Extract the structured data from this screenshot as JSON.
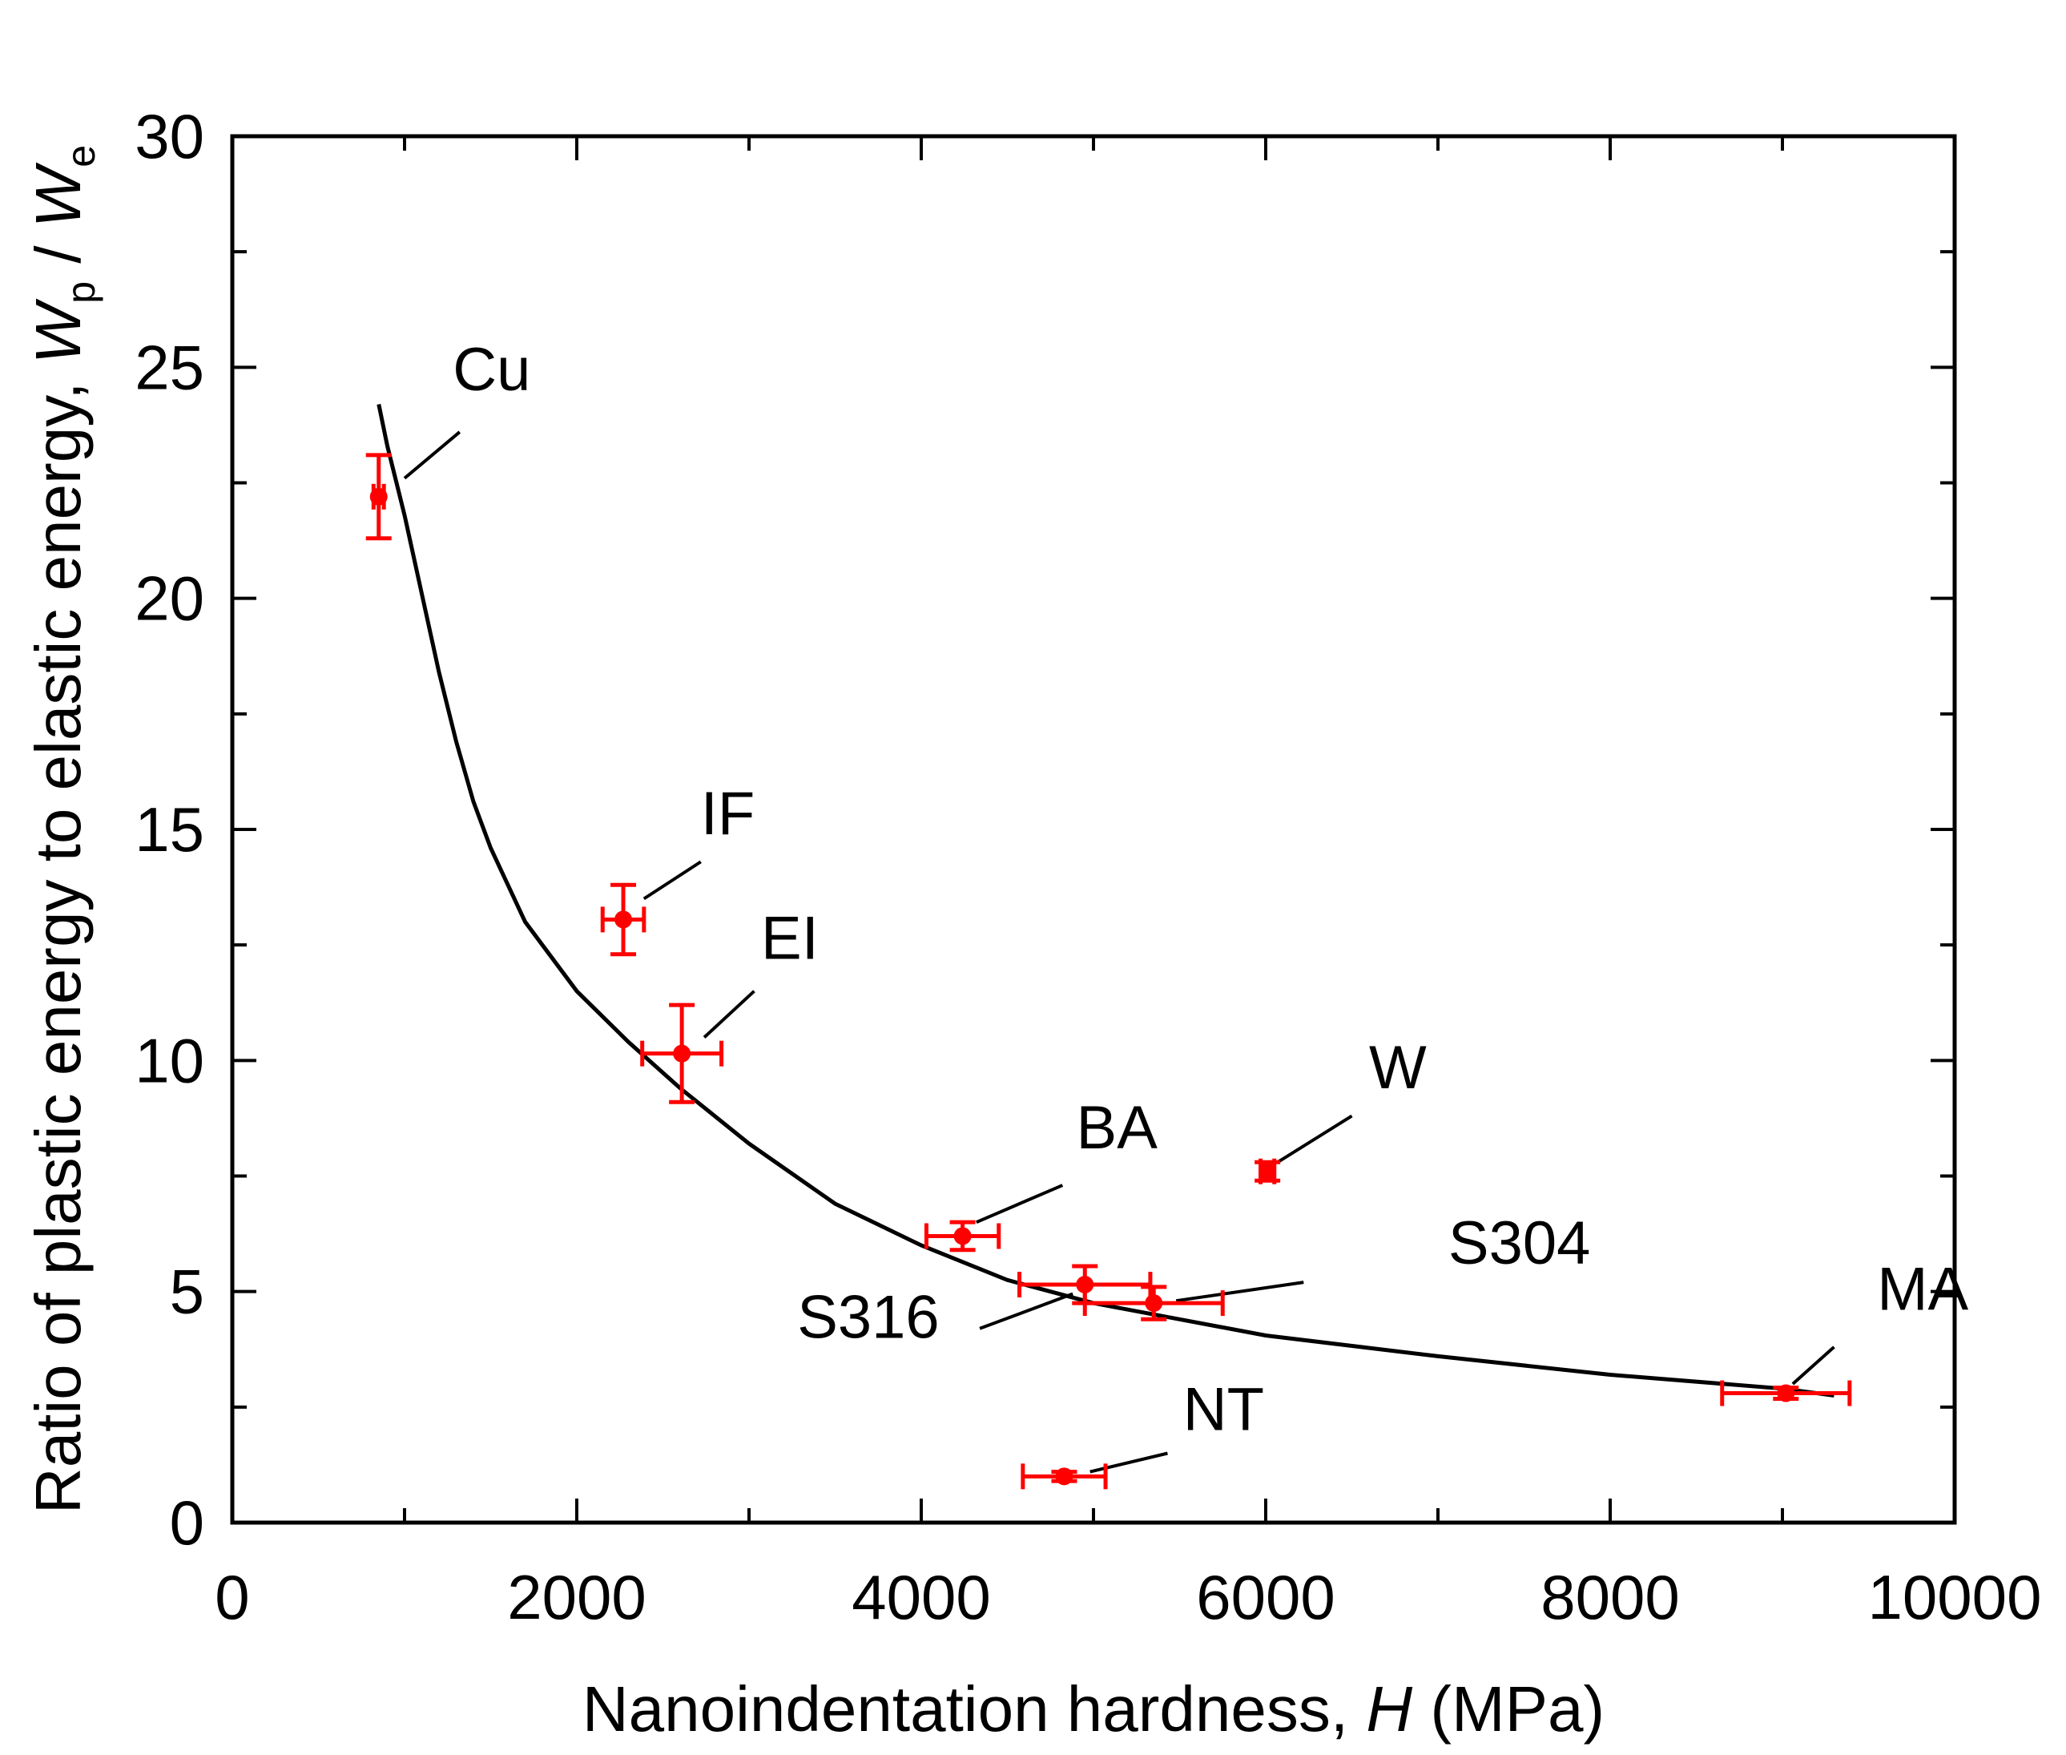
{
  "chart_data": {
    "type": "scatter",
    "xlabel": {
      "prefix": "Nanoindentation hardness, ",
      "symbol": "H",
      "unit": " (MPa)"
    },
    "ylabel": {
      "prefix": "Ratio of plastic energy to elastic energy, ",
      "symbol1": "W",
      "sub1": "p",
      "slash": " / ",
      "symbol2": "W",
      "sub2": "e"
    },
    "xlim": [
      0,
      10000
    ],
    "ylim": [
      0,
      30
    ],
    "xticks": [
      0,
      2000,
      4000,
      6000,
      8000,
      10000
    ],
    "yticks": [
      0,
      5,
      10,
      15,
      20,
      25,
      30
    ],
    "xtick_labels": [
      "0",
      "2000",
      "4000",
      "6000",
      "8000",
      "10000"
    ],
    "ytick_labels": [
      "0",
      "5",
      "10",
      "15",
      "20",
      "25",
      "30"
    ],
    "marker_color": "#ff0000",
    "curve_color": "#000000",
    "points": [
      {
        "label": "Cu",
        "x": 850,
        "y": 22.2,
        "xerr": 30,
        "yerr": 0.9,
        "label_at": [
          1280,
          24.5
        ],
        "leader_from": [
          1000,
          22.6
        ],
        "leader_to": [
          1320,
          23.6
        ]
      },
      {
        "label": "IF",
        "x": 2270,
        "y": 13.05,
        "xerr": 120,
        "yerr": 0.75,
        "label_at": [
          2720,
          14.9
        ],
        "leader_from": [
          2390,
          13.5
        ],
        "leader_to": [
          2720,
          14.3
        ]
      },
      {
        "label": "EI",
        "x": 2610,
        "y": 10.15,
        "xerr": 230,
        "yerr": 1.05,
        "label_at": [
          3070,
          12.2
        ],
        "leader_from": [
          2740,
          10.5
        ],
        "leader_to": [
          3030,
          11.5
        ]
      },
      {
        "label": "BA",
        "x": 4240,
        "y": 6.2,
        "xerr": 210,
        "yerr": 0.3,
        "label_at": [
          4900,
          8.1
        ],
        "leader_from": [
          4320,
          6.5
        ],
        "leader_to": [
          4820,
          7.3
        ]
      },
      {
        "label": "W",
        "x": 6010,
        "y": 7.6,
        "xerr": 40,
        "yerr": 0.2,
        "label_at": [
          6600,
          9.4
        ],
        "leader_from": [
          6070,
          7.8
        ],
        "leader_to": [
          6500,
          8.8
        ]
      },
      {
        "label": "S304",
        "x": 5350,
        "y": 4.75,
        "xerr": 400,
        "yerr": 0.35,
        "label_at": [
          7060,
          5.6
        ],
        "leader_from": [
          5480,
          4.8
        ],
        "leader_to": [
          6220,
          5.2
        ]
      },
      {
        "label": "S316",
        "x": 4950,
        "y": 5.15,
        "xerr": 380,
        "yerr": 0.4,
        "label_at": [
          3280,
          4.0
        ],
        "leader_from": [
          4340,
          4.2
        ],
        "leader_to": [
          4880,
          4.95
        ]
      },
      {
        "label": "MA",
        "x": 9020,
        "y": 2.8,
        "xerr": 370,
        "yerr": 0.12,
        "label_at": [
          9550,
          4.6
        ],
        "leader_from": [
          9060,
          3.0
        ],
        "leader_to": [
          9300,
          3.8
        ]
      },
      {
        "label": "NT",
        "x": 4830,
        "y": 1.0,
        "xerr": 240,
        "yerr": 0.1,
        "label_at": [
          5520,
          2.0
        ],
        "leader_from": [
          4980,
          1.1
        ],
        "leader_to": [
          5430,
          1.5
        ]
      }
    ],
    "fit_curve": {
      "x": [
        850,
        900,
        1000,
        1100,
        1200,
        1300,
        1400,
        1500,
        1700,
        2000,
        2300,
        2600,
        3000,
        3500,
        4000,
        4500,
        5000,
        5500,
        6000,
        7000,
        8000,
        9000,
        9300
      ],
      "y": [
        24.2,
        23.3,
        21.8,
        20.1,
        18.4,
        16.9,
        15.6,
        14.6,
        13.0,
        11.5,
        10.4,
        9.4,
        8.2,
        6.9,
        6.0,
        5.25,
        4.75,
        4.4,
        4.05,
        3.6,
        3.2,
        2.9,
        2.75
      ]
    }
  }
}
